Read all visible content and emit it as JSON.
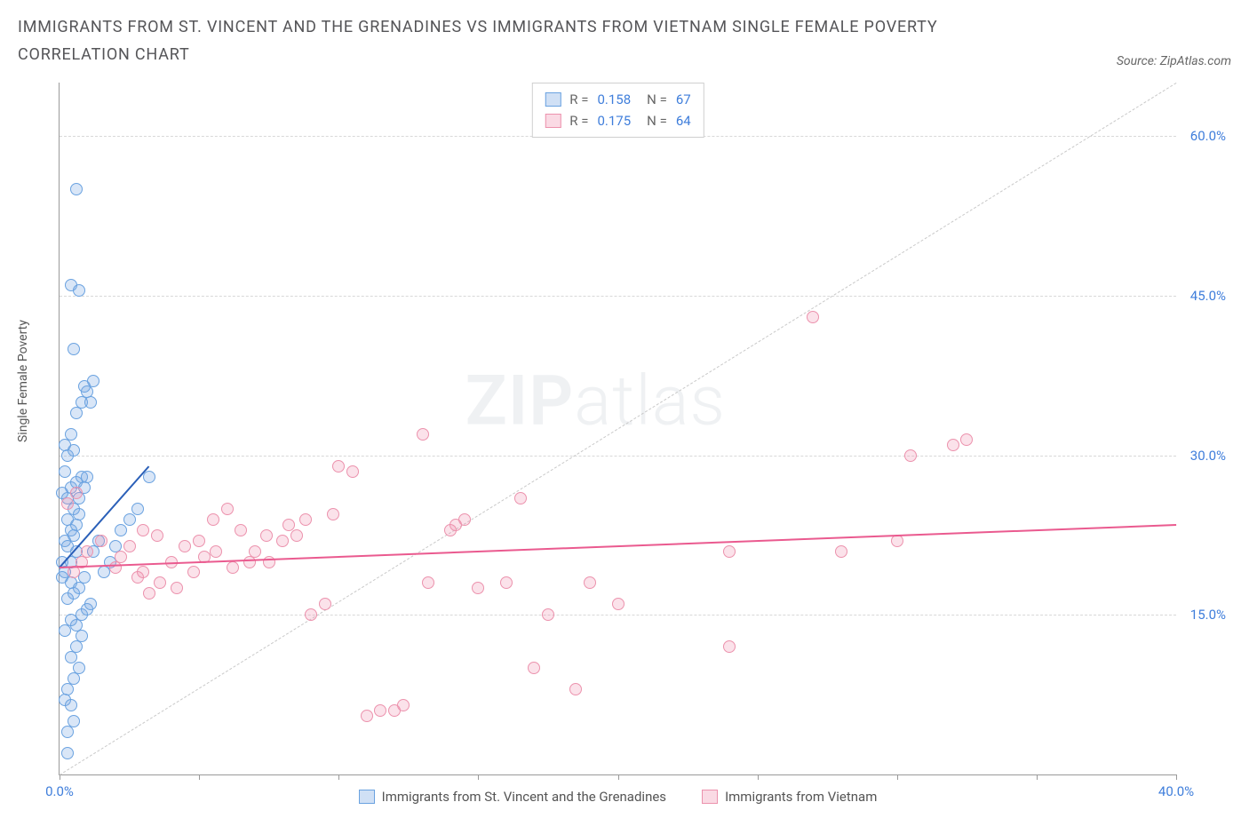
{
  "title": "IMMIGRANTS FROM ST. VINCENT AND THE GRENADINES VS IMMIGRANTS FROM VIETNAM SINGLE FEMALE POVERTY CORRELATION CHART",
  "source_prefix": "Source: ",
  "source_name": "ZipAtlas.com",
  "watermark_strong": "ZIP",
  "watermark_light": "atlas",
  "ylabel": "Single Female Poverty",
  "chart": {
    "type": "scatter",
    "background_color": "#ffffff",
    "grid_color": "#d8d8d8",
    "grid_dash": "4,4",
    "axis_color": "#9a9a9a",
    "xlim": [
      0,
      40
    ],
    "ylim": [
      0,
      65
    ],
    "x_tick_positions": [
      0,
      5,
      10,
      15,
      20,
      25,
      30,
      35,
      40
    ],
    "x_tick_labels": {
      "0": "0.0%",
      "40": "40.0%"
    },
    "y_grid_positions": [
      15,
      30,
      45,
      60
    ],
    "y_tick_labels": {
      "15": "15.0%",
      "30": "30.0%",
      "45": "45.0%",
      "60": "60.0%"
    },
    "y_label_color": "#3f7edb",
    "x_label_color": "#3f7edb",
    "label_fontsize": 15,
    "ylabel_fontsize": 14,
    "marker_radius": 7,
    "marker_stroke": 1.3,
    "diagonal": {
      "from": [
        0,
        0
      ],
      "to": [
        40,
        65
      ],
      "color": "#c9c9c9"
    }
  },
  "series": [
    {
      "key": "svg_series",
      "name": "Immigrants from St. Vincent and the Grenadines",
      "fill": "rgba(120,165,225,0.28)",
      "stroke": "#6aa2e0",
      "swatch_fill": "rgba(120,165,225,0.35)",
      "swatch_stroke": "#6aa2e0",
      "R": "0.158",
      "N": "67",
      "trend": {
        "from": [
          0.0,
          19.5
        ],
        "to": [
          3.2,
          29.0
        ],
        "color": "#2a5fb8",
        "width": 2.2
      },
      "points": [
        [
          0.3,
          2.0
        ],
        [
          0.1,
          20.0
        ],
        [
          0.4,
          20.0
        ],
        [
          0.2,
          22.0
        ],
        [
          0.6,
          21.0
        ],
        [
          0.2,
          19.0
        ],
        [
          0.4,
          18.0
        ],
        [
          0.1,
          18.5
        ],
        [
          0.3,
          24.0
        ],
        [
          0.5,
          25.0
        ],
        [
          0.7,
          24.5
        ],
        [
          0.3,
          26.0
        ],
        [
          0.4,
          27.0
        ],
        [
          0.6,
          27.5
        ],
        [
          0.8,
          28.0
        ],
        [
          0.2,
          28.5
        ],
        [
          0.1,
          26.5
        ],
        [
          0.4,
          23.0
        ],
        [
          0.6,
          23.5
        ],
        [
          0.3,
          21.5
        ],
        [
          0.5,
          22.5
        ],
        [
          0.7,
          26.0
        ],
        [
          0.9,
          27.0
        ],
        [
          1.0,
          28.0
        ],
        [
          0.3,
          30.0
        ],
        [
          0.5,
          30.5
        ],
        [
          0.2,
          31.0
        ],
        [
          0.4,
          32.0
        ],
        [
          0.6,
          34.0
        ],
        [
          0.8,
          35.0
        ],
        [
          1.0,
          36.0
        ],
        [
          1.2,
          37.0
        ],
        [
          0.4,
          11.0
        ],
        [
          0.6,
          12.0
        ],
        [
          0.8,
          13.0
        ],
        [
          0.5,
          9.0
        ],
        [
          0.7,
          10.0
        ],
        [
          0.3,
          8.0
        ],
        [
          0.2,
          7.0
        ],
        [
          0.4,
          6.5
        ],
        [
          0.6,
          14.0
        ],
        [
          0.8,
          15.0
        ],
        [
          1.0,
          15.5
        ],
        [
          1.1,
          16.0
        ],
        [
          0.3,
          16.5
        ],
        [
          0.5,
          17.0
        ],
        [
          0.7,
          17.5
        ],
        [
          0.9,
          18.5
        ],
        [
          1.2,
          21.0
        ],
        [
          1.4,
          22.0
        ],
        [
          1.6,
          19.0
        ],
        [
          1.8,
          20.0
        ],
        [
          2.0,
          21.5
        ],
        [
          2.2,
          23.0
        ],
        [
          2.5,
          24.0
        ],
        [
          2.8,
          25.0
        ],
        [
          3.2,
          28.0
        ],
        [
          0.5,
          40.0
        ],
        [
          0.4,
          46.0
        ],
        [
          0.7,
          45.5
        ],
        [
          0.6,
          55.0
        ],
        [
          0.9,
          36.5
        ],
        [
          1.1,
          35.0
        ],
        [
          0.3,
          4.0
        ],
        [
          0.5,
          5.0
        ],
        [
          0.2,
          13.5
        ],
        [
          0.4,
          14.5
        ]
      ]
    },
    {
      "key": "vnm_series",
      "name": "Immigrants from Vietnam",
      "fill": "rgba(240,140,170,0.25)",
      "stroke": "#ec92ad",
      "swatch_fill": "rgba(240,140,170,0.32)",
      "swatch_stroke": "#ec92ad",
      "R": "0.175",
      "N": "64",
      "trend": {
        "from": [
          0.0,
          19.5
        ],
        "to": [
          40.0,
          23.5
        ],
        "color": "#ea5a8f",
        "width": 2.0
      },
      "points": [
        [
          0.5,
          19.0
        ],
        [
          0.8,
          20.0
        ],
        [
          1.0,
          21.0
        ],
        [
          1.5,
          22.0
        ],
        [
          2.0,
          19.5
        ],
        [
          2.2,
          20.5
        ],
        [
          2.5,
          21.5
        ],
        [
          3.0,
          23.0
        ],
        [
          3.5,
          22.5
        ],
        [
          3.0,
          19.0
        ],
        [
          4.0,
          20.0
        ],
        [
          4.5,
          21.5
        ],
        [
          5.0,
          22.0
        ],
        [
          5.5,
          24.0
        ],
        [
          6.0,
          25.0
        ],
        [
          6.5,
          23.0
        ],
        [
          7.0,
          21.0
        ],
        [
          7.5,
          20.0
        ],
        [
          8.0,
          22.0
        ],
        [
          8.5,
          22.5
        ],
        [
          9.0,
          15.0
        ],
        [
          9.5,
          16.0
        ],
        [
          10.0,
          29.0
        ],
        [
          10.5,
          28.5
        ],
        [
          12.0,
          6.0
        ],
        [
          12.3,
          6.5
        ],
        [
          13.0,
          32.0
        ],
        [
          13.2,
          18.0
        ],
        [
          14.0,
          23.0
        ],
        [
          14.2,
          23.5
        ],
        [
          14.5,
          24.0
        ],
        [
          15.0,
          17.5
        ],
        [
          16.0,
          18.0
        ],
        [
          16.5,
          26.0
        ],
        [
          17.0,
          10.0
        ],
        [
          17.5,
          15.0
        ],
        [
          18.5,
          8.0
        ],
        [
          19.0,
          18.0
        ],
        [
          20.0,
          16.0
        ],
        [
          24.0,
          21.0
        ],
        [
          24.0,
          12.0
        ],
        [
          27.0,
          43.0
        ],
        [
          28.0,
          21.0
        ],
        [
          30.0,
          22.0
        ],
        [
          30.5,
          30.0
        ],
        [
          32.0,
          31.0
        ],
        [
          32.5,
          31.5
        ],
        [
          2.8,
          18.5
        ],
        [
          3.2,
          17.0
        ],
        [
          3.6,
          18.0
        ],
        [
          4.2,
          17.5
        ],
        [
          4.8,
          19.0
        ],
        [
          5.2,
          20.5
        ],
        [
          5.6,
          21.0
        ],
        [
          6.2,
          19.5
        ],
        [
          6.8,
          20.0
        ],
        [
          7.4,
          22.5
        ],
        [
          8.2,
          23.5
        ],
        [
          8.8,
          24.0
        ],
        [
          9.8,
          24.5
        ],
        [
          11.0,
          5.5
        ],
        [
          11.5,
          6.0
        ],
        [
          0.3,
          25.5
        ],
        [
          0.6,
          26.5
        ]
      ]
    }
  ],
  "legend_top_labels": {
    "r": "R =",
    "n": "N ="
  },
  "colors": {
    "title": "#555558",
    "source": "#666666",
    "ylabel_text": "#555555"
  }
}
